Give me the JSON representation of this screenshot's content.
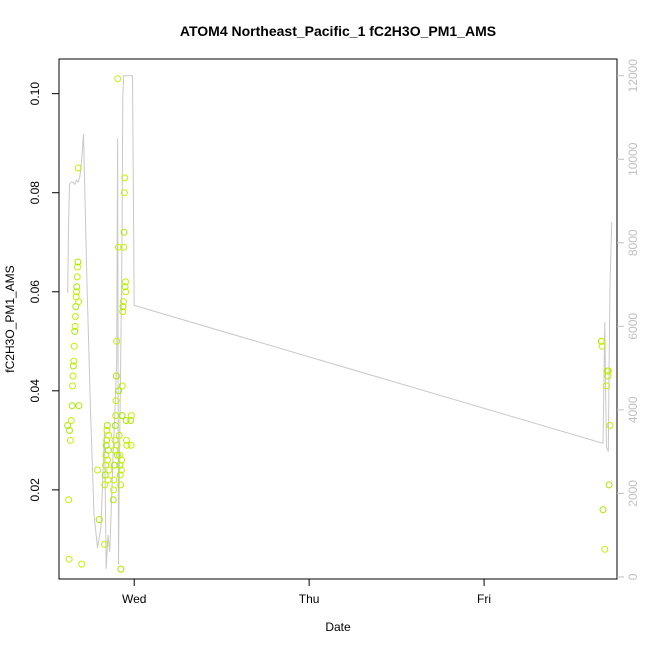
{
  "chart_data": {
    "type": "scatter",
    "title": "ATOM4 Northeast_Pacific_1 fC2H3O_PM1_AMS",
    "xlabel": "Date",
    "ylabel": "fC2H3O_PM1_AMS",
    "x_unit": "days since Wed 00:00",
    "xlim": [
      -0.43,
      2.76
    ],
    "x_ticks": [
      {
        "value": 0,
        "label": "Wed"
      },
      {
        "value": 1,
        "label": "Thu"
      },
      {
        "value": 2,
        "label": "Fri"
      }
    ],
    "ylim": [
      0.002,
      0.107
    ],
    "y_ticks": [
      {
        "value": 0.02,
        "label": "0.02"
      },
      {
        "value": 0.04,
        "label": "0.04"
      },
      {
        "value": 0.06,
        "label": "0.06"
      },
      {
        "value": 0.08,
        "label": "0.08"
      },
      {
        "value": 0.1,
        "label": "0.10"
      }
    ],
    "y2lim": [
      -50,
      12400
    ],
    "y2_ticks": [
      {
        "value": 0,
        "label": "0"
      },
      {
        "value": 2000,
        "label": "2000"
      },
      {
        "value": 4000,
        "label": "4000"
      },
      {
        "value": 6000,
        "label": "6000"
      },
      {
        "value": 8000,
        "label": "8000"
      },
      {
        "value": 10000,
        "label": "10000"
      },
      {
        "value": 12000,
        "label": "12000"
      }
    ],
    "grid": false,
    "colors": {
      "points": "#c0f000",
      "points_alt": "#a8e800",
      "altitude_line": "#c8c8c8",
      "right_axis": "#c0c0c0",
      "text": "#000000"
    },
    "series": [
      {
        "marker": "open-circle",
        "points": [
          [
            -0.38,
            0.033
          ],
          [
            -0.375,
            0.018
          ],
          [
            -0.372,
            0.006
          ],
          [
            -0.37,
            0.032
          ],
          [
            -0.365,
            0.03
          ],
          [
            -0.36,
            0.034
          ],
          [
            -0.355,
            0.037
          ],
          [
            -0.352,
            0.041
          ],
          [
            -0.35,
            0.043
          ],
          [
            -0.348,
            0.045
          ],
          [
            -0.345,
            0.046
          ],
          [
            -0.343,
            0.049
          ],
          [
            -0.34,
            0.052
          ],
          [
            -0.338,
            0.053
          ],
          [
            -0.336,
            0.055
          ],
          [
            -0.334,
            0.057
          ],
          [
            -0.332,
            0.059
          ],
          [
            -0.33,
            0.06
          ],
          [
            -0.328,
            0.061
          ],
          [
            -0.326,
            0.063
          ],
          [
            -0.324,
            0.065
          ],
          [
            -0.322,
            0.066
          ],
          [
            -0.32,
            0.085
          ],
          [
            -0.318,
            0.058
          ],
          [
            -0.316,
            0.037
          ],
          [
            -0.3,
            0.005
          ],
          [
            -0.21,
            0.024
          ],
          [
            -0.2,
            0.014
          ],
          [
            -0.17,
            0.009
          ],
          [
            -0.168,
            0.021
          ],
          [
            -0.166,
            0.023
          ],
          [
            -0.164,
            0.025
          ],
          [
            -0.162,
            0.027
          ],
          [
            -0.16,
            0.029
          ],
          [
            -0.158,
            0.03
          ],
          [
            -0.156,
            0.032
          ],
          [
            -0.154,
            0.033
          ],
          [
            -0.152,
            0.026
          ],
          [
            -0.15,
            0.022
          ],
          [
            -0.148,
            0.028
          ],
          [
            -0.146,
            0.031
          ],
          [
            -0.144,
            0.024
          ],
          [
            -0.12,
            0.018
          ],
          [
            -0.118,
            0.02
          ],
          [
            -0.116,
            0.022
          ],
          [
            -0.114,
            0.025
          ],
          [
            -0.112,
            0.028
          ],
          [
            -0.11,
            0.03
          ],
          [
            -0.108,
            0.033
          ],
          [
            -0.106,
            0.035
          ],
          [
            -0.104,
            0.038
          ],
          [
            -0.102,
            0.043
          ],
          [
            -0.1,
            0.05
          ],
          [
            -0.098,
            0.029
          ],
          [
            -0.096,
            0.027
          ],
          [
            -0.094,
            0.103
          ],
          [
            -0.09,
            0.069
          ],
          [
            -0.088,
            0.04
          ],
          [
            -0.086,
            0.031
          ],
          [
            -0.084,
            0.027
          ],
          [
            -0.082,
            0.025
          ],
          [
            -0.08,
            0.023
          ],
          [
            -0.078,
            0.021
          ],
          [
            -0.076,
            0.004
          ],
          [
            -0.074,
            0.024
          ],
          [
            -0.072,
            0.026
          ],
          [
            -0.07,
            0.035
          ],
          [
            -0.068,
            0.041
          ],
          [
            -0.066,
            0.056
          ],
          [
            -0.064,
            0.057
          ],
          [
            -0.062,
            0.058
          ],
          [
            -0.06,
            0.069
          ],
          [
            -0.058,
            0.072
          ],
          [
            -0.056,
            0.08
          ],
          [
            -0.054,
            0.083
          ],
          [
            -0.052,
            0.061
          ],
          [
            -0.05,
            0.062
          ],
          [
            -0.048,
            0.06
          ],
          [
            -0.046,
            0.034
          ],
          [
            -0.044,
            0.03
          ],
          [
            -0.042,
            0.029
          ],
          [
            -0.02,
            0.034
          ],
          [
            -0.018,
            0.029
          ],
          [
            -0.016,
            0.035
          ],
          [
            2.67,
            0.05
          ],
          [
            2.672,
            0.05
          ],
          [
            2.675,
            0.049
          ],
          [
            2.68,
            0.016
          ],
          [
            2.69,
            0.008
          ],
          [
            2.7,
            0.041
          ],
          [
            2.705,
            0.044
          ],
          [
            2.708,
            0.043
          ],
          [
            2.71,
            0.044
          ],
          [
            2.715,
            0.021
          ],
          [
            2.72,
            0.033
          ]
        ]
      },
      {
        "axis": "right",
        "style": "line",
        "points": [
          [
            -0.38,
            6800
          ],
          [
            -0.375,
            8500
          ],
          [
            -0.37,
            9400
          ],
          [
            -0.36,
            9450
          ],
          [
            -0.35,
            9450
          ],
          [
            -0.34,
            9400
          ],
          [
            -0.33,
            9500
          ],
          [
            -0.32,
            9450
          ],
          [
            -0.31,
            9600
          ],
          [
            -0.3,
            10000
          ],
          [
            -0.29,
            10600
          ],
          [
            -0.27,
            7000
          ],
          [
            -0.25,
            4000
          ],
          [
            -0.23,
            1500
          ],
          [
            -0.21,
            700
          ],
          [
            -0.19,
            1200
          ],
          [
            -0.17,
            3500
          ],
          [
            -0.16,
            200
          ],
          [
            -0.15,
            1000
          ],
          [
            -0.14,
            600
          ],
          [
            -0.13,
            1800
          ],
          [
            -0.12,
            3000
          ],
          [
            -0.11,
            4000
          ],
          [
            -0.1,
            5200
          ],
          [
            -0.095,
            10500
          ],
          [
            -0.09,
            300
          ],
          [
            -0.085,
            2500
          ],
          [
            -0.08,
            4200
          ],
          [
            -0.075,
            6000
          ],
          [
            -0.07,
            8000
          ],
          [
            -0.065,
            11500
          ],
          [
            -0.06,
            12000
          ],
          [
            -0.03,
            12000
          ],
          [
            -0.01,
            12000
          ],
          [
            0.0,
            6500
          ],
          [
            2.68,
            3200
          ],
          [
            2.69,
            6100
          ],
          [
            2.695,
            4500
          ],
          [
            2.7,
            3100
          ],
          [
            2.71,
            3000
          ],
          [
            2.715,
            5000
          ],
          [
            2.72,
            7000
          ],
          [
            2.73,
            8500
          ]
        ]
      }
    ]
  }
}
